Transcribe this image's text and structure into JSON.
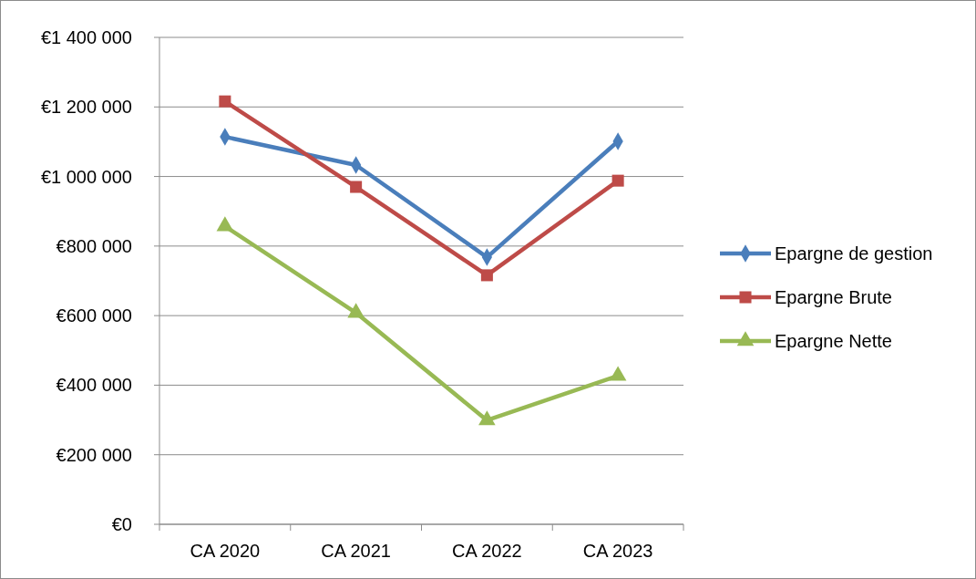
{
  "chart_data": {
    "type": "line",
    "categories": [
      "CA 2020",
      "CA 2021",
      "CA 2022",
      "CA 2023"
    ],
    "series": [
      {
        "name": "Epargne de gestion",
        "color": "#4a7ebb",
        "marker": "diamond",
        "values": [
          1114000,
          1033000,
          768000,
          1101000
        ]
      },
      {
        "name": "Epargne Brute",
        "color": "#be4b48",
        "marker": "square",
        "values": [
          1216000,
          970000,
          716000,
          988000
        ]
      },
      {
        "name": "Epargne Nette",
        "color": "#98b954",
        "marker": "triangle",
        "values": [
          857000,
          608000,
          299000,
          427000
        ]
      }
    ],
    "ylim": [
      0,
      1400000
    ],
    "yticks": [
      {
        "value": 0,
        "label": "€0"
      },
      {
        "value": 200000,
        "label": "€200 000"
      },
      {
        "value": 400000,
        "label": "€400 000"
      },
      {
        "value": 600000,
        "label": "€600 000"
      },
      {
        "value": 800000,
        "label": "€800 000"
      },
      {
        "value": 1000000,
        "label": "€1 000 000"
      },
      {
        "value": 1200000,
        "label": "€1 200 000"
      },
      {
        "value": 1400000,
        "label": "€1 400 000"
      }
    ],
    "grid": "y",
    "legend": "right",
    "line_style": "solid"
  }
}
